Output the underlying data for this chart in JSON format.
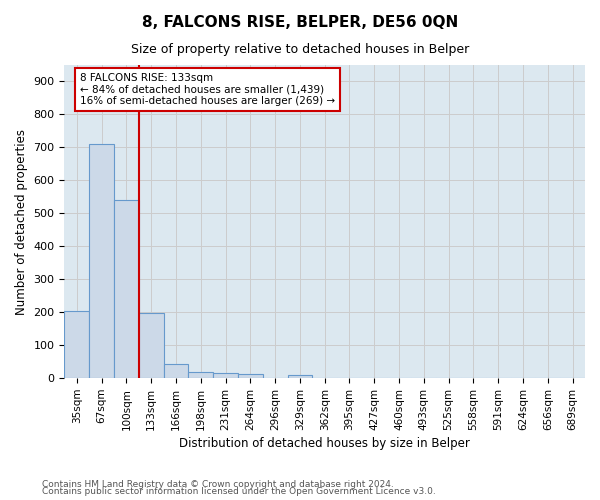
{
  "title": "8, FALCONS RISE, BELPER, DE56 0QN",
  "subtitle": "Size of property relative to detached houses in Belper",
  "xlabel": "Distribution of detached houses by size in Belper",
  "ylabel": "Number of detached properties",
  "footnote1": "Contains HM Land Registry data © Crown copyright and database right 2024.",
  "footnote2": "Contains public sector information licensed under the Open Government Licence v3.0.",
  "bin_labels": [
    "35sqm",
    "67sqm",
    "100sqm",
    "133sqm",
    "166sqm",
    "198sqm",
    "231sqm",
    "264sqm",
    "296sqm",
    "329sqm",
    "362sqm",
    "395sqm",
    "427sqm",
    "460sqm",
    "493sqm",
    "525sqm",
    "558sqm",
    "591sqm",
    "624sqm",
    "656sqm",
    "689sqm"
  ],
  "bar_values": [
    205,
    710,
    540,
    197,
    43,
    20,
    15,
    12,
    0,
    10,
    0,
    0,
    0,
    0,
    0,
    0,
    0,
    0,
    0,
    0,
    0
  ],
  "bar_color": "#ccd9e8",
  "bar_edge_color": "#6699cc",
  "grid_color": "#cccccc",
  "bg_color": "#dce8f0",
  "property_line_x": 3,
  "property_label": "8 FALCONS RISE: 133sqm",
  "annotation_line1": "← 84% of detached houses are smaller (1,439)",
  "annotation_line2": "16% of semi-detached houses are larger (269) →",
  "annotation_box_color": "#cc0000",
  "ylim": [
    0,
    950
  ],
  "yticks": [
    0,
    100,
    200,
    300,
    400,
    500,
    600,
    700,
    800,
    900
  ]
}
